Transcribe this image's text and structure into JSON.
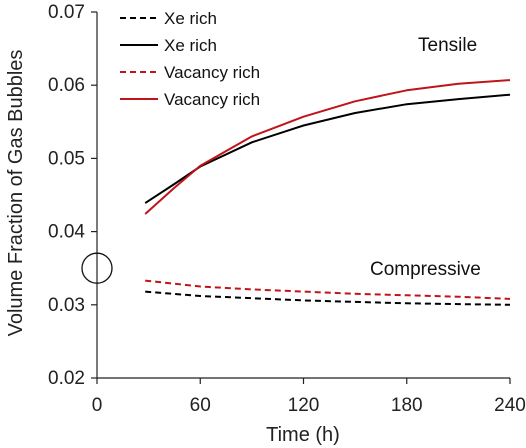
{
  "chart_data": {
    "type": "line",
    "title": "",
    "xlabel": "Time (h)",
    "ylabel": "Volume Fraction of Gas Bubbles",
    "xlim": [
      0,
      240
    ],
    "ylim": [
      0.02,
      0.07
    ],
    "x_ticks": [
      "0",
      "60",
      "120",
      "180",
      "240"
    ],
    "y_ticks": [
      "0.02",
      "0.03",
      "0.04",
      "0.05",
      "0.06",
      "0.07"
    ],
    "grid": false,
    "legend_position": "top-left",
    "annotations": [
      "Tensile",
      "Compressive"
    ],
    "marker": {
      "type": "circle",
      "x": 0,
      "y": 0.035
    },
    "series": [
      {
        "name": "Xe rich",
        "group": "Compressive",
        "color": "#000000",
        "dash": "dashed",
        "x": [
          28,
          60,
          90,
          120,
          150,
          180,
          210,
          240
        ],
        "y": [
          0.0318,
          0.0312,
          0.0309,
          0.0306,
          0.0304,
          0.0302,
          0.0301,
          0.03
        ]
      },
      {
        "name": "Xe rich",
        "group": "Tensile",
        "color": "#000000",
        "dash": "solid",
        "x": [
          28,
          45,
          60,
          90,
          120,
          150,
          180,
          210,
          240
        ],
        "y": [
          0.0439,
          0.0465,
          0.0489,
          0.0522,
          0.0545,
          0.0562,
          0.0574,
          0.0581,
          0.0587
        ]
      },
      {
        "name": "Vacancy rich",
        "group": "Compressive",
        "color": "#c0141a",
        "dash": "dashed",
        "x": [
          28,
          60,
          90,
          120,
          150,
          180,
          210,
          240
        ],
        "y": [
          0.0333,
          0.0325,
          0.0321,
          0.0318,
          0.0315,
          0.0313,
          0.0311,
          0.0308
        ]
      },
      {
        "name": "Vacancy rich",
        "group": "Tensile",
        "color": "#c0141a",
        "dash": "solid",
        "x": [
          28,
          45,
          60,
          90,
          120,
          150,
          180,
          210,
          240
        ],
        "y": [
          0.0424,
          0.046,
          0.049,
          0.053,
          0.0557,
          0.0578,
          0.0593,
          0.0602,
          0.0607
        ]
      }
    ]
  }
}
